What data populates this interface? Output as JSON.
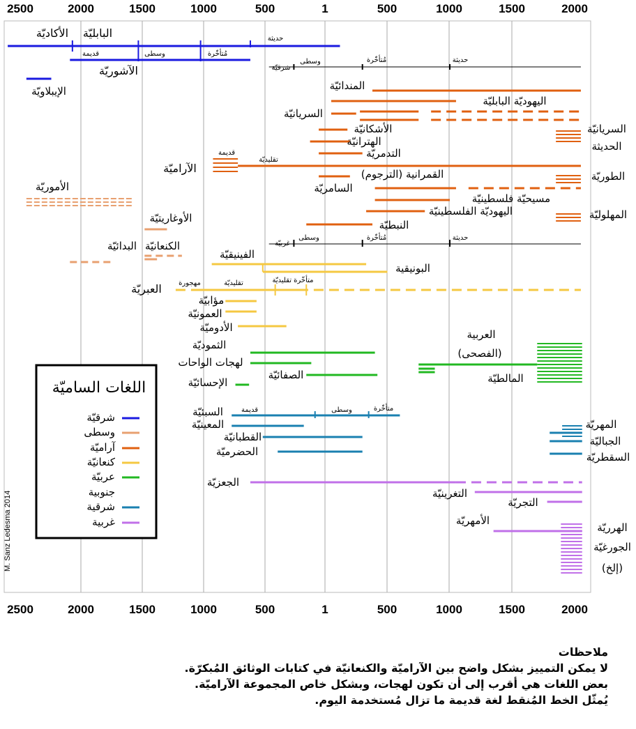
{
  "axis": {
    "ticks": [
      "2500",
      "2000",
      "1500",
      "1000",
      "500",
      "1",
      "500",
      "1000",
      "1500",
      "2000"
    ]
  },
  "colors": {
    "east": "#1a1ae0",
    "west_early": "#e8a070",
    "aramaic": "#e06010",
    "canaanite": "#f5c842",
    "arabic": "#22b822",
    "south_east": "#1a80b0",
    "south_west": "#c070e8"
  },
  "labels": {
    "akkadian": "الأكاديّة",
    "babylonian": "البابليّة",
    "assyrian": "الآشوريّة",
    "eblaite": "الإيبلاويّة",
    "modern_top": "حديثة",
    "old_top": "قديمة",
    "middle_top": "وسطى",
    "late_top": "مُتأخّرة",
    "eastern_top": "شرقيّة",
    "middle_a": "وسطى",
    "late_a": "مُتأخّرة",
    "modern_a": "حديثة",
    "mandaic": "المندائيّة",
    "jewish_babylonian": "اليهوديّة البابليّة",
    "syriac": "السريانيّة",
    "arsacid": "الأشكانيّة",
    "hatran": "الهترانيّة",
    "palmyrene": "التدمريّة",
    "aramaic": "الآراميّة",
    "old_aram": "قديمة",
    "classical_aram": "تقليديّة",
    "qumran": "القمرانية (الترجوم)",
    "samaritan": "السامريّة",
    "christian_palestinian": "مسيحيّة فلسطينيّة",
    "jewish_palestinian": "اليهوديّة الفلسطينيّة",
    "nabataean": "النبطيّة",
    "western_b": "غربيّة",
    "middle_b": "وسطى",
    "late_b": "مُتأخّرة",
    "modern_b": "حديثة",
    "neo_syriac": "السريانيّة\nالحديثة",
    "turoyo": "الطوريّة",
    "mlahso": "المهلوليّة",
    "amorite": "الأموريّة",
    "ugaritic": "الأوغاريتيّة",
    "canaanite": "الكنعانيّة",
    "proto_canaanite": "البدائيّة",
    "phoenician": "الفينيقيّة",
    "punic": "البونيقية",
    "hebrew": "العبريّة",
    "hebrew_abandoned": "مهجورة",
    "hebrew_classical": "تقليديّة",
    "hebrew_late_classical": "متأخّرة تقليديّة",
    "moabite": "مؤابيّة",
    "ammonite": "العمونيّة",
    "edomite": "الأدوميّة",
    "arabic": "العربية",
    "arabic_fusha": "(الفصحى)",
    "maltese": "المالطيّة",
    "thamudic": "الثموديّة",
    "oasis_dialects": "لهجات الواحات",
    "safaitic": "الصفائيّة",
    "hasaitic": "الإحسائيّة",
    "sabaic": "السبئيّة",
    "sab_old": "قديمة",
    "sab_middle": "وسطى",
    "sab_late": "متأخّرة",
    "minaic": "المعينيّة",
    "qatabanic": "القطبانيّة",
    "hadramautic": "الحضرميّة",
    "mehri": "المهريّة",
    "jibbali": "الجباليّة",
    "soqotri": "السقطريّة",
    "geez": "الجعزيّة",
    "tigrinya": "التغرينيّة",
    "tigre": "التجريّة",
    "amharic": "الأمهريّة",
    "harari": "الهرريّة",
    "gurage": "الجورغيّة",
    "etc": "(إلخ)"
  },
  "legend": {
    "title": "اللغات الساميّة",
    "items": [
      {
        "label": "شرقيّة",
        "color": "#1a1ae0"
      },
      {
        "label": "وسطى",
        "color": "#e8a070"
      },
      {
        "label": "آراميّة",
        "color": "#e06010"
      },
      {
        "label": "كنعانيّة",
        "color": "#f5c842"
      },
      {
        "label": "عربيّة",
        "color": "#22b822"
      },
      {
        "label": "جنوبية",
        "color": ""
      },
      {
        "label": "شرقية",
        "color": "#1a80b0"
      },
      {
        "label": "غربية",
        "color": "#c070e8"
      }
    ]
  },
  "credit": "M. Sanz Ledesma 2014",
  "notes": {
    "title": "ملاحظات",
    "lines": [
      "لا يمكن التمييز بشكل واضح بين الآراميّة والكنعانيّة في كتابات الوثائق المُبكرّة.",
      "بعض اللغات هي أقرب إلى أن تكون لهجات، وبشكل خاص المجموعة الآراميّة.",
      "يُمثّل الخط المُنقط لغة قديمة ما تزال مُستخدمة اليوم."
    ]
  }
}
